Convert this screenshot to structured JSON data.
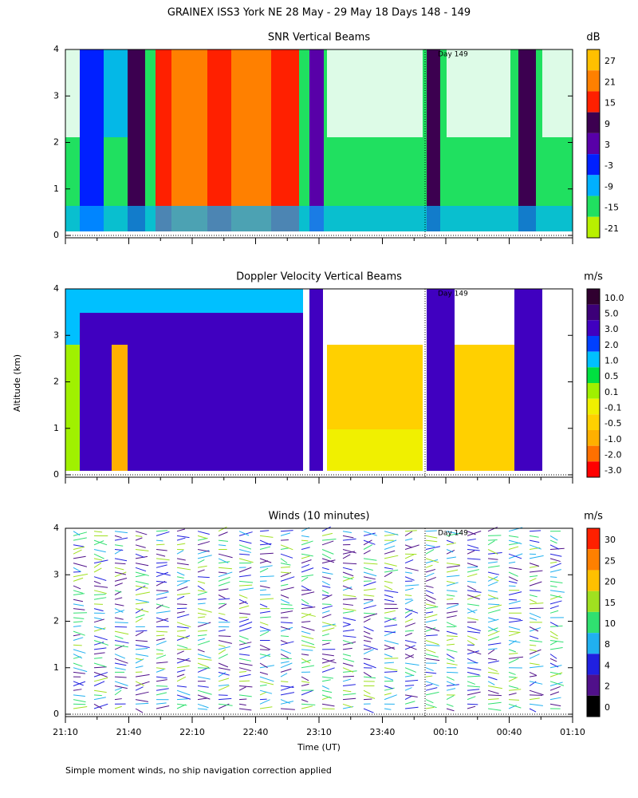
{
  "title": "GRAINEX ISS3 York NE  28 May - 29 May 18 Days 148 - 149",
  "y_axis_label": "Altitude (km)",
  "x_axis_label": "Time (UT)",
  "footnote": "Simple moment winds, no ship navigation correction applied",
  "ylim": [
    0,
    4
  ],
  "y_ticks": [
    0,
    1,
    2,
    3,
    4
  ],
  "x_ticks": [
    "21:10",
    "21:40",
    "22:10",
    "22:40",
    "23:10",
    "23:40",
    "00:10",
    "00:40",
    "01:10"
  ],
  "panels": [
    {
      "title": "SNR Vertical Beams",
      "unit": "dB",
      "day_marker": "Day 149",
      "colorbar": {
        "labels": [
          "27",
          "21",
          "15",
          "9",
          "3",
          "-3",
          "-9",
          "-15",
          "-21"
        ],
        "colors": [
          "#ffc000",
          "#ff8000",
          "#ff2000",
          "#3c0050",
          "#5800a8",
          "#0020ff",
          "#00b0ff",
          "#20e060",
          "#b8f000"
        ]
      }
    },
    {
      "title": "Doppler Velocity Vertical Beams",
      "unit": "m/s",
      "day_marker": "Day 149",
      "colorbar": {
        "labels": [
          "10.0",
          "5.0",
          "3.0",
          "2.0",
          "1.0",
          "0.5",
          "0.1",
          "-0.1",
          "-0.5",
          "-1.0",
          "-2.0",
          "-3.0"
        ],
        "colors": [
          "#300030",
          "#3c0078",
          "#4000c0",
          "#0040ff",
          "#00c0ff",
          "#00e040",
          "#a0f000",
          "#f0f000",
          "#ffd000",
          "#ffb000",
          "#ff7000",
          "#ff0000"
        ]
      }
    },
    {
      "title": "Winds (10 minutes)",
      "unit": "m/s",
      "day_marker": "Day 149",
      "colorbar": {
        "labels": [
          "30",
          "25",
          "20",
          "15",
          "10",
          "8",
          "4",
          "2",
          "0"
        ],
        "colors": [
          "#ff2000",
          "#ff8000",
          "#ffc000",
          "#a0e020",
          "#30e070",
          "#20b0f0",
          "#2020e0",
          "#50108a",
          "#000000"
        ]
      }
    }
  ]
}
